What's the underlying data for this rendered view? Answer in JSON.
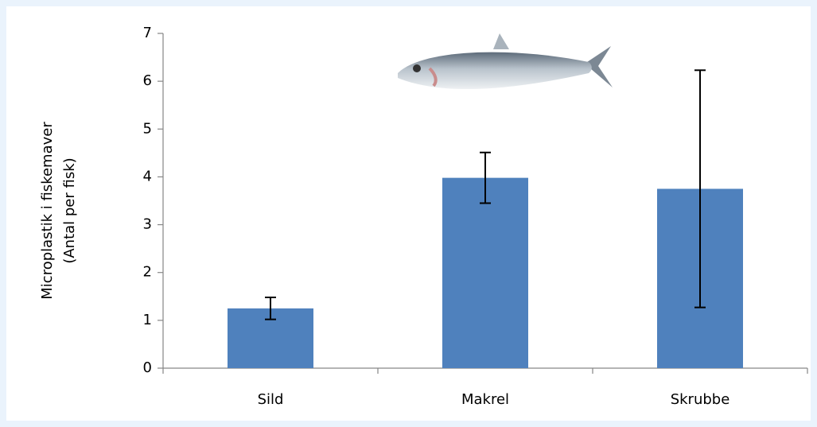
{
  "chart_data": {
    "type": "bar",
    "ylabel": [
      "Microplastik i fiskemaver",
      "(Antal per fisk)"
    ],
    "categories": [
      "Sild",
      "Makrel",
      "Skrubbe"
    ],
    "values": [
      1.25,
      3.98,
      3.75
    ],
    "errors": [
      0.23,
      0.53,
      2.48
    ],
    "color": "#4f81bd",
    "ylim": [
      0,
      7
    ],
    "yticks": [
      0,
      1,
      2,
      3,
      4,
      5,
      6,
      7
    ]
  }
}
